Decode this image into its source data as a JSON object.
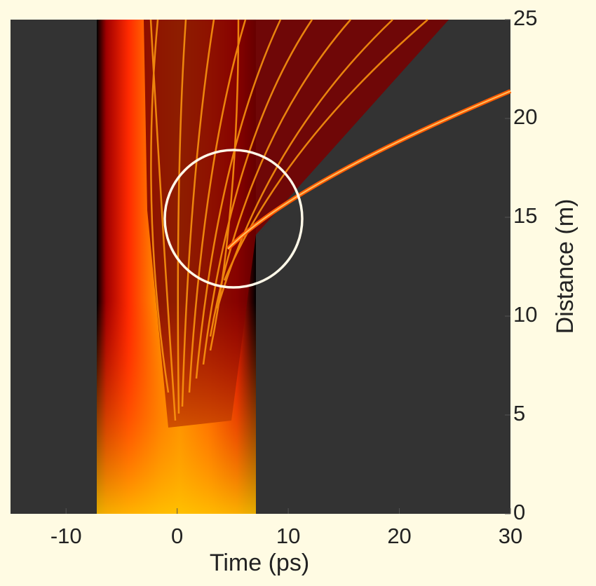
{
  "chart_data": {
    "type": "heatmap",
    "xlabel": "Time (ps)",
    "ylabel": "Distance (m)",
    "xlim": [
      -15,
      30
    ],
    "xticks": [
      -10,
      0,
      10,
      20,
      30
    ],
    "ylim": [
      0,
      25
    ],
    "yticks": [
      0,
      5,
      10,
      15,
      20,
      25
    ],
    "color": "#333333"
  }
}
